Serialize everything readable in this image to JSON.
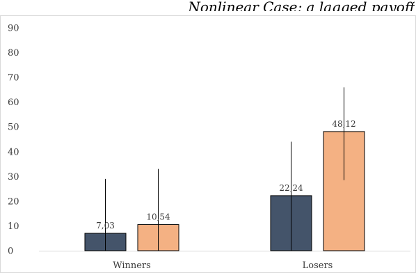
{
  "title_fragment": "Nonlinear Case; a lagged payoff",
  "chart_data": {
    "type": "bar",
    "categories": [
      "Winners",
      "Losers"
    ],
    "series": [
      {
        "values": [
          7.03,
          22.24
        ],
        "labels": [
          "7,03",
          "22,24"
        ],
        "color": "#44546a",
        "error_high": [
          29,
          44
        ],
        "error_low": [
          0,
          0
        ]
      },
      {
        "values": [
          10.54,
          48.12
        ],
        "labels": [
          "10,54",
          "48,12"
        ],
        "color": "#f4b183",
        "error_high": [
          33,
          66
        ],
        "error_low": [
          0,
          28.5
        ]
      }
    ],
    "ylim": [
      0,
      90
    ],
    "yticks": [
      0,
      10,
      20,
      30,
      40,
      50,
      60,
      70,
      80,
      90
    ],
    "grid": false,
    "border_color": "#d9d9d9",
    "axis_color": "#d9d9d9"
  }
}
